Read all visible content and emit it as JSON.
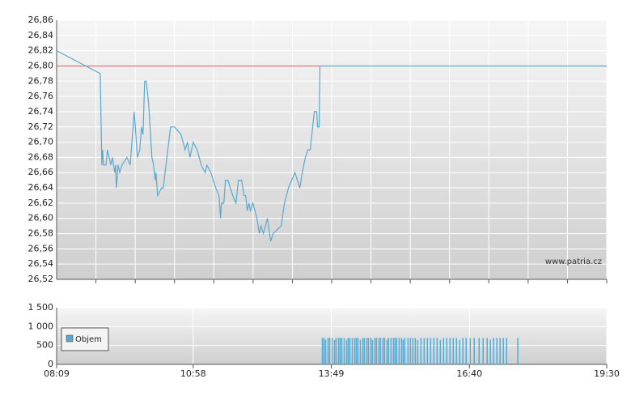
{
  "chart_data": [
    {
      "type": "line",
      "x": [
        489,
        543,
        545,
        546,
        547,
        550,
        552,
        556,
        558,
        561,
        562,
        563,
        565,
        567,
        570,
        576,
        580,
        585,
        589,
        592,
        594,
        596,
        598,
        600,
        603,
        607,
        609,
        611,
        612,
        614,
        619,
        621,
        630,
        635,
        643,
        648,
        651,
        654,
        658,
        663,
        668,
        673,
        675,
        680,
        683,
        686,
        690,
        692,
        693,
        696,
        698,
        701,
        704,
        707,
        711,
        714,
        718,
        721,
        723,
        725,
        727,
        729,
        732,
        737,
        740,
        742,
        745,
        750,
        754,
        757,
        767,
        771,
        776,
        780,
        784,
        790,
        793,
        797,
        800,
        803,
        806,
        808,
        811,
        812,
        814,
        815,
        1170
      ],
      "values": [
        26.82,
        26.79,
        26.67,
        26.69,
        26.67,
        26.67,
        26.69,
        26.67,
        26.68,
        26.66,
        26.67,
        26.64,
        26.67,
        26.66,
        26.67,
        26.68,
        26.67,
        26.74,
        26.68,
        26.69,
        26.72,
        26.71,
        26.78,
        26.78,
        26.75,
        26.68,
        26.67,
        26.65,
        26.66,
        26.63,
        26.64,
        26.64,
        26.72,
        26.72,
        26.71,
        26.69,
        26.7,
        26.68,
        26.7,
        26.69,
        26.67,
        26.66,
        26.67,
        26.66,
        26.65,
        26.64,
        26.63,
        26.6,
        26.62,
        26.62,
        26.65,
        26.65,
        26.64,
        26.63,
        26.62,
        26.65,
        26.65,
        26.63,
        26.63,
        26.61,
        26.62,
        26.61,
        26.62,
        26.6,
        26.58,
        26.59,
        26.58,
        26.6,
        26.57,
        26.58,
        26.59,
        26.62,
        26.64,
        26.65,
        26.66,
        26.64,
        26.66,
        26.68,
        26.69,
        26.69,
        26.72,
        26.74,
        26.74,
        26.72,
        26.72,
        26.8,
        26.8
      ],
      "color": "#5aa9d0",
      "reference_line": {
        "value": 26.8,
        "color": "#e06060"
      },
      "xlim": [
        489,
        1170
      ],
      "xgrid_count": 14,
      "ylim": [
        26.52,
        26.86
      ],
      "yticks": [
        {
          "value": 26.52,
          "label": "26,52"
        },
        {
          "value": 26.54,
          "label": "26,54"
        },
        {
          "value": 26.56,
          "label": "26,56"
        },
        {
          "value": 26.58,
          "label": "26,58"
        },
        {
          "value": 26.6,
          "label": "26,60"
        },
        {
          "value": 26.62,
          "label": "26,62"
        },
        {
          "value": 26.64,
          "label": "26,64"
        },
        {
          "value": 26.66,
          "label": "26,66"
        },
        {
          "value": 26.68,
          "label": "26,68"
        },
        {
          "value": 26.7,
          "label": "26,70"
        },
        {
          "value": 26.72,
          "label": "26,72"
        },
        {
          "value": 26.74,
          "label": "26,74"
        },
        {
          "value": 26.76,
          "label": "26,76"
        },
        {
          "value": 26.78,
          "label": "26,78"
        },
        {
          "value": 26.8,
          "label": "26,80"
        },
        {
          "value": 26.82,
          "label": "26,82"
        },
        {
          "value": 26.84,
          "label": "26,84"
        },
        {
          "value": 26.86,
          "label": "26,86"
        }
      ],
      "annotation": "www.patria.cz"
    },
    {
      "type": "bar",
      "x": [
        818,
        820,
        822,
        825,
        827,
        830,
        833,
        835,
        838,
        840,
        842,
        845,
        848,
        850,
        852,
        855,
        858,
        860,
        862,
        865,
        868,
        870,
        873,
        875,
        878,
        880,
        883,
        885,
        888,
        890,
        893,
        895,
        898,
        900,
        903,
        906,
        908,
        910,
        913,
        916,
        918,
        920,
        924,
        927,
        930,
        933,
        936,
        940,
        944,
        948,
        952,
        956,
        960,
        964,
        968,
        972,
        976,
        980,
        984,
        988,
        992,
        996,
        1001,
        1006,
        1012,
        1017,
        1022,
        1026,
        1030,
        1034,
        1038,
        1042,
        1046,
        1060
      ],
      "series": [
        {
          "name": "Objem",
          "color": "#5aa9d0",
          "values": [
            700,
            700,
            650,
            700,
            700,
            700,
            650,
            700,
            700,
            700,
            700,
            700,
            650,
            700,
            700,
            700,
            700,
            700,
            700,
            650,
            700,
            700,
            700,
            700,
            700,
            650,
            700,
            700,
            700,
            700,
            700,
            700,
            650,
            700,
            700,
            700,
            700,
            700,
            700,
            700,
            650,
            700,
            700,
            700,
            700,
            700,
            650,
            700,
            700,
            700,
            700,
            700,
            700,
            650,
            700,
            700,
            700,
            700,
            700,
            650,
            700,
            700,
            700,
            700,
            700,
            700,
            700,
            650,
            700,
            700,
            700,
            700,
            700,
            700
          ]
        }
      ],
      "xlim": [
        489,
        1170
      ],
      "xticks": [
        {
          "value": 489,
          "label": "08:09"
        },
        {
          "value": 658,
          "label": "10:58"
        },
        {
          "value": 829,
          "label": "13:49"
        },
        {
          "value": 1000,
          "label": "16:40"
        },
        {
          "value": 1170,
          "label": "19:30"
        }
      ],
      "ylim": [
        0,
        1500
      ],
      "yticks": [
        0,
        500,
        {
          "value": 1000,
          "label": "1 000"
        },
        {
          "value": 1500,
          "label": "1 500"
        }
      ]
    }
  ]
}
